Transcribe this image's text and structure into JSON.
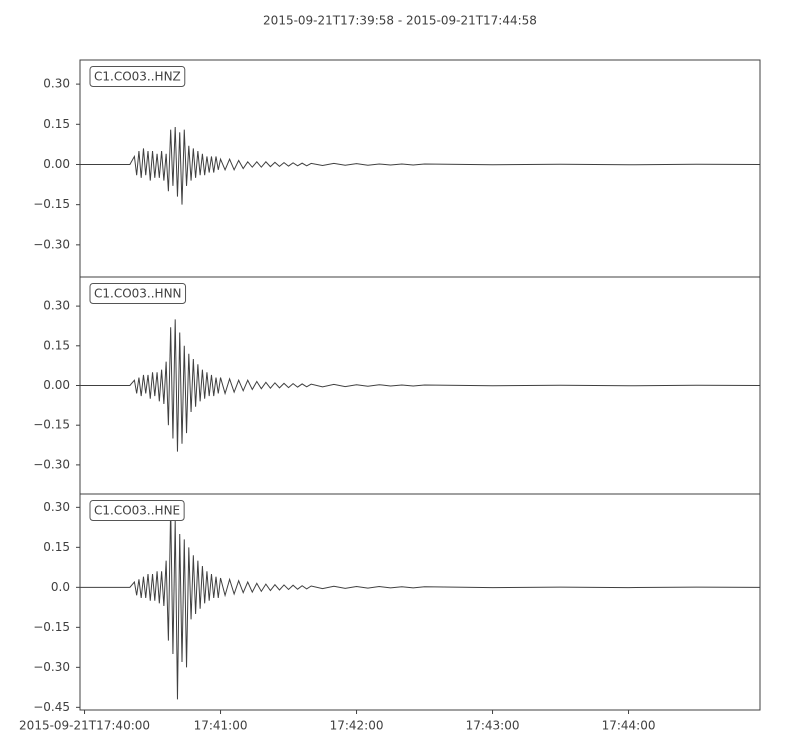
{
  "chart_data": {
    "type": "line",
    "title": "2015-09-21T17:39:58  -  2015-09-21T17:44:58",
    "subplots": true,
    "color": "#404040",
    "x": [
      "17:39:58",
      "17:40:20",
      "17:40:22",
      "17:40:23",
      "17:40:24",
      "17:40:25",
      "17:40:26",
      "17:40:27",
      "17:40:28",
      "17:40:29",
      "17:40:30",
      "17:40:31",
      "17:40:32",
      "17:40:33",
      "17:40:34",
      "17:40:35",
      "17:40:36",
      "17:40:37",
      "17:40:38",
      "17:40:39",
      "17:40:40",
      "17:40:41",
      "17:40:42",
      "17:40:43",
      "17:40:44",
      "17:40:45",
      "17:40:46",
      "17:40:47",
      "17:40:48",
      "17:40:49",
      "17:40:50",
      "17:40:51",
      "17:40:52",
      "17:40:53",
      "17:40:54",
      "17:40:55",
      "17:40:56",
      "17:40:57",
      "17:40:58",
      "17:40:59",
      "17:41:00",
      "17:41:02",
      "17:41:04",
      "17:41:06",
      "17:41:08",
      "17:41:10",
      "17:41:12",
      "17:41:14",
      "17:41:16",
      "17:41:18",
      "17:41:20",
      "17:41:22",
      "17:41:24",
      "17:41:26",
      "17:41:28",
      "17:41:30",
      "17:41:32",
      "17:41:34",
      "17:41:36",
      "17:41:38",
      "17:41:40",
      "17:41:45",
      "17:41:50",
      "17:41:55",
      "17:42:00",
      "17:42:05",
      "17:42:10",
      "17:42:15",
      "17:42:20",
      "17:42:25",
      "17:42:30",
      "17:43:00",
      "17:43:30",
      "17:44:00",
      "17:44:30",
      "17:44:58"
    ],
    "xlim": [
      "17:39:58",
      "17:44:58"
    ],
    "xticks": [
      {
        "value": "17:40:00",
        "label": "2015-09-21T17:40:00"
      },
      "17:41:00",
      "17:42:00",
      "17:43:00",
      "17:44:00"
    ],
    "series": [
      {
        "name": "C1.CO03..HNZ",
        "ylim": [
          -0.42,
          0.39
        ],
        "yticks": [
          {
            "value": -0.3,
            "label": "−0.30"
          },
          {
            "value": -0.15,
            "label": "−0.15"
          },
          {
            "value": 0,
            "label": "0.00"
          },
          {
            "value": 0.15,
            "label": "0.15"
          },
          {
            "value": 0.3,
            "label": "0.30"
          }
        ],
        "values": [
          0,
          0,
          0.03,
          -0.04,
          0.05,
          -0.05,
          0.06,
          -0.04,
          0.05,
          -0.06,
          0.05,
          -0.05,
          0.04,
          -0.05,
          0.05,
          -0.06,
          0.04,
          -0.1,
          0.13,
          -0.08,
          0.14,
          -0.12,
          0.12,
          -0.15,
          0.13,
          -0.08,
          0.07,
          -0.06,
          0.06,
          -0.05,
          0.05,
          -0.04,
          0.04,
          -0.04,
          0.03,
          -0.03,
          0.03,
          -0.03,
          0.03,
          -0.02,
          0.02,
          -0.02,
          0.02,
          -0.02,
          0.015,
          -0.015,
          0.01,
          -0.01,
          0.01,
          -0.01,
          0.01,
          -0.008,
          0.008,
          -0.007,
          0.007,
          -0.006,
          0.006,
          -0.005,
          0.005,
          -0.005,
          0.004,
          -0.004,
          0.004,
          -0.003,
          0.003,
          -0.003,
          0.002,
          -0.002,
          0.002,
          -0.002,
          0.002,
          -0.001,
          0.001,
          -0.001,
          0.001,
          0
        ]
      },
      {
        "name": "C1.CO03..HNN",
        "ylim": [
          -0.41,
          0.41
        ],
        "yticks": [
          {
            "value": -0.3,
            "label": "−0.30"
          },
          {
            "value": -0.15,
            "label": "−0.15"
          },
          {
            "value": 0,
            "label": "0.00"
          },
          {
            "value": 0.15,
            "label": "0.15"
          },
          {
            "value": 0.3,
            "label": "0.30"
          }
        ],
        "values": [
          0,
          0,
          0.02,
          -0.03,
          0.03,
          -0.04,
          0.04,
          -0.03,
          0.04,
          -0.05,
          0.05,
          -0.04,
          0.05,
          -0.06,
          0.06,
          -0.07,
          0.09,
          -0.15,
          0.22,
          -0.2,
          0.25,
          -0.25,
          0.2,
          -0.22,
          0.15,
          -0.18,
          0.12,
          -0.1,
          0.1,
          -0.08,
          0.08,
          -0.06,
          0.06,
          -0.05,
          0.05,
          -0.04,
          0.04,
          -0.04,
          0.03,
          -0.03,
          0.03,
          -0.03,
          0.025,
          -0.025,
          0.02,
          -0.02,
          0.02,
          -0.015,
          0.015,
          -0.012,
          0.012,
          -0.01,
          0.01,
          -0.009,
          0.008,
          -0.008,
          0.007,
          -0.006,
          0.006,
          -0.005,
          0.005,
          -0.005,
          0.004,
          -0.004,
          0.003,
          -0.003,
          0.003,
          -0.002,
          0.002,
          -0.002,
          0.002,
          -0.001,
          0.001,
          -0.001,
          0.001,
          0
        ]
      },
      {
        "name": "C1.CO03..HNE",
        "ylim": [
          -0.46,
          0.35
        ],
        "yticks": [
          {
            "value": -0.45,
            "label": "−0.45"
          },
          {
            "value": -0.3,
            "label": "−0.30"
          },
          {
            "value": -0.15,
            "label": "−0.15"
          },
          {
            "value": 0,
            "label": "0.0"
          },
          {
            "value": 0.15,
            "label": "0.15"
          },
          {
            "value": 0.3,
            "label": "0.30"
          }
        ],
        "values": [
          0,
          0,
          0.02,
          -0.03,
          0.03,
          -0.04,
          0.04,
          -0.04,
          0.05,
          -0.05,
          0.05,
          -0.05,
          0.06,
          -0.06,
          0.06,
          -0.07,
          0.1,
          -0.2,
          0.3,
          -0.25,
          0.25,
          -0.42,
          0.2,
          -0.28,
          0.18,
          -0.3,
          0.15,
          -0.12,
          0.12,
          -0.1,
          0.1,
          -0.08,
          0.08,
          -0.06,
          0.06,
          -0.05,
          0.05,
          -0.04,
          0.04,
          -0.04,
          0.035,
          -0.03,
          0.03,
          -0.025,
          0.025,
          -0.02,
          0.02,
          -0.018,
          0.015,
          -0.015,
          0.012,
          -0.012,
          0.01,
          -0.01,
          0.009,
          -0.008,
          0.008,
          -0.007,
          0.006,
          -0.006,
          0.005,
          -0.005,
          0.004,
          -0.004,
          0.003,
          -0.003,
          0.003,
          -0.002,
          0.002,
          -0.002,
          0.002,
          -0.001,
          0.001,
          -0.001,
          0.001,
          0
        ]
      }
    ]
  }
}
